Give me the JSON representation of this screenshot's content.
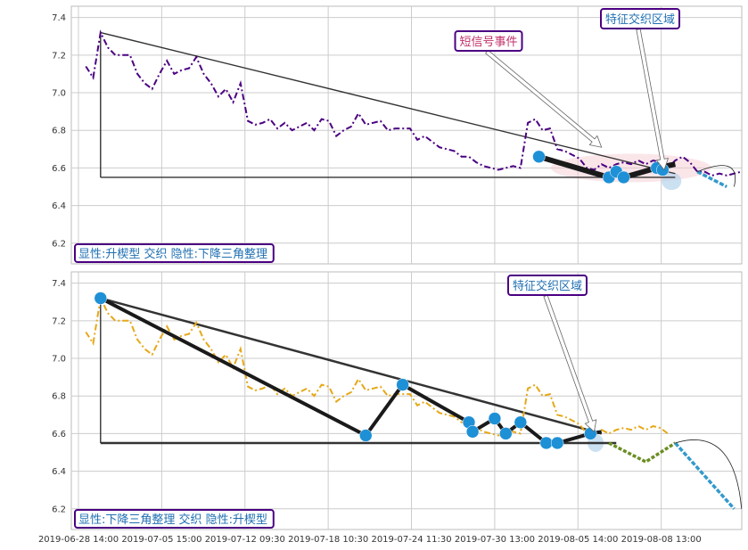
{
  "chart_data": [
    {
      "type": "line",
      "title": "",
      "xlabel": "",
      "ylabel": "",
      "ylim": [
        6.09,
        7.46
      ],
      "yticks": [
        6.2,
        6.4,
        6.6,
        6.8,
        7.0,
        7.2,
        7.4
      ],
      "grid": true,
      "series": [
        {
          "style": "dash-dot",
          "color": "#4b0082",
          "points": [
            [
              0,
              7.14
            ],
            [
              1,
              7.08
            ],
            [
              2,
              7.32
            ],
            [
              3,
              7.24
            ],
            [
              4,
              7.2
            ],
            [
              5,
              7.2
            ],
            [
              6,
              7.2
            ],
            [
              7,
              7.1
            ],
            [
              8,
              7.05
            ],
            [
              9,
              7.02
            ],
            [
              10,
              7.1
            ],
            [
              11,
              7.17
            ],
            [
              12,
              7.1
            ],
            [
              13,
              7.12
            ],
            [
              14,
              7.13
            ],
            [
              15,
              7.19
            ],
            [
              16,
              7.1
            ],
            [
              17,
              7.05
            ],
            [
              18,
              6.98
            ],
            [
              19,
              7.02
            ],
            [
              20,
              6.95
            ],
            [
              21,
              7.05
            ],
            [
              22,
              6.85
            ],
            [
              23,
              6.83
            ],
            [
              24,
              6.84
            ],
            [
              25,
              6.86
            ],
            [
              26,
              6.81
            ],
            [
              27,
              6.84
            ],
            [
              28,
              6.8
            ],
            [
              29,
              6.82
            ],
            [
              30,
              6.84
            ],
            [
              31,
              6.8
            ],
            [
              32,
              6.86
            ],
            [
              33,
              6.85
            ],
            [
              34,
              6.77
            ],
            [
              35,
              6.8
            ],
            [
              36,
              6.82
            ],
            [
              37,
              6.89
            ],
            [
              38,
              6.83
            ],
            [
              39,
              6.84
            ],
            [
              40,
              6.85
            ],
            [
              41,
              6.8
            ],
            [
              42,
              6.81
            ],
            [
              43,
              6.81
            ],
            [
              44,
              6.81
            ],
            [
              45,
              6.75
            ],
            [
              46,
              6.77
            ],
            [
              47,
              6.74
            ],
            [
              48,
              6.71
            ],
            [
              49,
              6.7
            ],
            [
              50,
              6.69
            ],
            [
              51,
              6.66
            ],
            [
              52,
              6.66
            ],
            [
              53,
              6.63
            ],
            [
              54,
              6.61
            ],
            [
              55,
              6.6
            ],
            [
              56,
              6.59
            ],
            [
              57,
              6.6
            ],
            [
              58,
              6.61
            ],
            [
              59,
              6.6
            ],
            [
              60,
              6.84
            ],
            [
              61,
              6.86
            ],
            [
              62,
              6.8
            ],
            [
              63,
              6.81
            ],
            [
              64,
              6.7
            ],
            [
              65,
              6.69
            ],
            [
              66,
              6.67
            ],
            [
              67,
              6.65
            ],
            [
              68,
              6.6
            ],
            [
              69,
              6.59
            ],
            [
              70,
              6.62
            ],
            [
              71,
              6.6
            ],
            [
              72,
              6.62
            ],
            [
              73,
              6.63
            ],
            [
              74,
              6.62
            ],
            [
              75,
              6.64
            ],
            [
              76,
              6.62
            ],
            [
              77,
              6.64
            ],
            [
              78,
              6.63
            ],
            [
              79,
              6.6
            ],
            [
              80,
              6.64
            ],
            [
              81,
              6.66
            ],
            [
              82,
              6.63
            ],
            [
              83,
              6.58
            ],
            [
              84,
              6.58
            ],
            [
              85,
              6.56
            ],
            [
              86,
              6.57
            ],
            [
              87,
              6.56
            ],
            [
              88,
              6.57
            ],
            [
              89,
              6.58
            ]
          ]
        },
        {
          "style": "solid-bold",
          "color": "#1a1a1a",
          "points": [
            [
              61.5,
              6.66
            ],
            [
              71,
              6.55
            ],
            [
              72,
              6.58
            ],
            [
              73,
              6.55
            ],
            [
              77.5,
              6.6
            ],
            [
              80,
              6.62
            ]
          ]
        },
        {
          "style": "dotted-blue",
          "color": "#3399cc",
          "points": [
            [
              83,
              6.58
            ],
            [
              87,
              6.5
            ]
          ]
        }
      ],
      "markers": [
        [
          61.5,
          6.66
        ],
        [
          71,
          6.55
        ],
        [
          72,
          6.58
        ],
        [
          73,
          6.55
        ],
        [
          77.5,
          6.6
        ],
        [
          78.3,
          6.59
        ]
      ],
      "trendlines": [
        [
          [
            2,
            7.32
          ],
          [
            80,
            6.57
          ]
        ],
        [
          [
            2,
            6.55
          ],
          [
            80,
            6.55
          ]
        ],
        [
          [
            2,
            7.32
          ],
          [
            2,
            6.55
          ]
        ]
      ],
      "annotations": [
        {
          "text": "短信号事件",
          "color": "#c0306a",
          "target": [
            70,
            6.71
          ]
        },
        {
          "text": "特征交织区域",
          "color": "#1f6fb2",
          "target": [
            78.5,
            6.59
          ]
        }
      ],
      "label": "显性:升楔型 交织 隐性:下降三角整理"
    },
    {
      "type": "line",
      "title": "",
      "xlabel": "",
      "ylabel": "",
      "ylim": [
        6.09,
        7.46
      ],
      "yticks": [
        6.2,
        6.4,
        6.6,
        6.8,
        7.0,
        7.2,
        7.4
      ],
      "grid": true,
      "series": [
        {
          "style": "dash-dot",
          "color": "#e6a817",
          "points": [
            [
              0,
              7.14
            ],
            [
              1,
              7.08
            ],
            [
              2,
              7.32
            ],
            [
              3,
              7.24
            ],
            [
              4,
              7.2
            ],
            [
              5,
              7.2
            ],
            [
              6,
              7.2
            ],
            [
              7,
              7.1
            ],
            [
              8,
              7.05
            ],
            [
              9,
              7.02
            ],
            [
              10,
              7.1
            ],
            [
              11,
              7.17
            ],
            [
              12,
              7.1
            ],
            [
              13,
              7.12
            ],
            [
              14,
              7.13
            ],
            [
              15,
              7.19
            ],
            [
              16,
              7.1
            ],
            [
              17,
              7.05
            ],
            [
              18,
              6.98
            ],
            [
              19,
              7.02
            ],
            [
              20,
              6.95
            ],
            [
              21,
              7.05
            ],
            [
              22,
              6.85
            ],
            [
              23,
              6.83
            ],
            [
              24,
              6.84
            ],
            [
              25,
              6.86
            ],
            [
              26,
              6.81
            ],
            [
              27,
              6.84
            ],
            [
              28,
              6.8
            ],
            [
              29,
              6.82
            ],
            [
              30,
              6.84
            ],
            [
              31,
              6.8
            ],
            [
              32,
              6.86
            ],
            [
              33,
              6.85
            ],
            [
              34,
              6.77
            ],
            [
              35,
              6.8
            ],
            [
              36,
              6.82
            ],
            [
              37,
              6.89
            ],
            [
              38,
              6.83
            ],
            [
              39,
              6.84
            ],
            [
              40,
              6.85
            ],
            [
              41,
              6.8
            ],
            [
              42,
              6.81
            ],
            [
              43,
              6.81
            ],
            [
              44,
              6.81
            ],
            [
              45,
              6.75
            ],
            [
              46,
              6.77
            ],
            [
              47,
              6.74
            ],
            [
              48,
              6.71
            ],
            [
              49,
              6.7
            ],
            [
              50,
              6.69
            ],
            [
              51,
              6.66
            ],
            [
              52,
              6.66
            ],
            [
              53,
              6.63
            ],
            [
              54,
              6.61
            ],
            [
              55,
              6.6
            ],
            [
              56,
              6.59
            ],
            [
              57,
              6.6
            ],
            [
              58,
              6.61
            ],
            [
              59,
              6.6
            ],
            [
              60,
              6.84
            ],
            [
              61,
              6.86
            ],
            [
              62,
              6.8
            ],
            [
              63,
              6.81
            ],
            [
              64,
              6.7
            ],
            [
              65,
              6.69
            ],
            [
              66,
              6.67
            ],
            [
              67,
              6.65
            ],
            [
              68,
              6.6
            ],
            [
              69,
              6.59
            ],
            [
              70,
              6.62
            ],
            [
              71,
              6.6
            ],
            [
              72,
              6.62
            ],
            [
              73,
              6.63
            ],
            [
              74,
              6.62
            ],
            [
              75,
              6.64
            ],
            [
              76,
              6.62
            ],
            [
              77,
              6.64
            ],
            [
              78,
              6.63
            ],
            [
              79,
              6.6
            ]
          ]
        },
        {
          "style": "solid-bold",
          "color": "#1a1a1a",
          "points": [
            [
              2,
              7.32
            ],
            [
              38,
              6.59
            ],
            [
              43,
              6.86
            ],
            [
              52,
              6.66
            ],
            [
              52.5,
              6.61
            ],
            [
              55.5,
              6.68
            ],
            [
              57,
              6.6
            ],
            [
              59,
              6.66
            ],
            [
              62.5,
              6.55
            ],
            [
              64,
              6.55
            ],
            [
              68.5,
              6.6
            ],
            [
              70,
              6.61
            ]
          ]
        },
        {
          "style": "dashed-olive",
          "color": "#6b8e23",
          "points": [
            [
              71,
              6.55
            ],
            [
              76,
              6.45
            ],
            [
              80,
              6.55
            ]
          ]
        },
        {
          "style": "dotted-blue",
          "color": "#3399cc",
          "points": [
            [
              80,
              6.55
            ],
            [
              88,
              6.2
            ]
          ]
        }
      ],
      "markers": [
        [
          2,
          7.32
        ],
        [
          38,
          6.59
        ],
        [
          43,
          6.86
        ],
        [
          52,
          6.66
        ],
        [
          52.5,
          6.61
        ],
        [
          55.5,
          6.68
        ],
        [
          57,
          6.6
        ],
        [
          59,
          6.66
        ],
        [
          62.5,
          6.55
        ],
        [
          64,
          6.55
        ],
        [
          68.5,
          6.6
        ]
      ],
      "trendlines": [
        [
          [
            2,
            7.32
          ],
          [
            70,
            6.6
          ]
        ],
        [
          [
            2,
            6.55
          ],
          [
            72,
            6.55
          ]
        ],
        [
          [
            2,
            7.32
          ],
          [
            2,
            6.55
          ]
        ]
      ],
      "annotations": [
        {
          "text": "特征交织区域",
          "color": "#1f6fb2",
          "target": [
            69,
            6.61
          ]
        }
      ],
      "label": "显性:下降三角整理 交织 隐性:升楔型"
    }
  ],
  "xaxis": {
    "range": [
      -1,
      90
    ],
    "ticks": [
      {
        "x": -1,
        "label": "2019-06-28 14:00"
      },
      {
        "x": 10.3,
        "label": "2019-07-05 15:00"
      },
      {
        "x": 21.6,
        "label": "2019-07-12 09:30"
      },
      {
        "x": 32.9,
        "label": "2019-07-18 10:30"
      },
      {
        "x": 44.2,
        "label": "2019-07-24 11:30"
      },
      {
        "x": 55.5,
        "label": "2019-07-30 13:00"
      },
      {
        "x": 66.8,
        "label": "2019-08-05 14:00"
      },
      {
        "x": 78.1,
        "label": "2019-08-08 13:00"
      }
    ]
  },
  "colors": {
    "marker": "#1e90d6",
    "box_border": "#4b0082",
    "grid": "#cccccc",
    "trend": "#333333"
  }
}
